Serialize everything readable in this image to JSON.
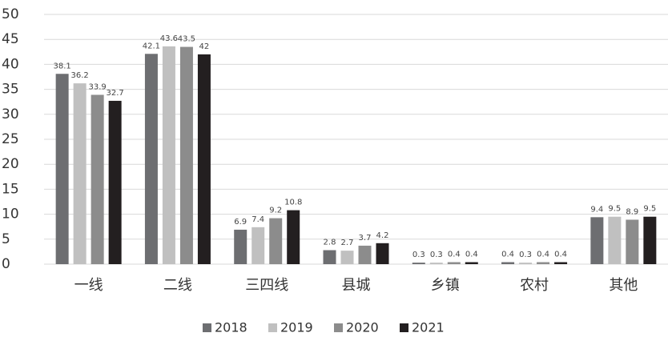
{
  "chart_data": {
    "type": "bar",
    "categories": [
      "一线",
      "二线",
      "三四线",
      "县城",
      "乡镇",
      "农村",
      "其他"
    ],
    "series": [
      {
        "name": "2018",
        "color": "#6d6e71",
        "values": [
          38.1,
          42.1,
          6.9,
          2.8,
          0.3,
          0.4,
          9.4
        ]
      },
      {
        "name": "2019",
        "color": "#c0c0c0",
        "values": [
          36.2,
          43.6,
          7.4,
          2.7,
          0.3,
          0.3,
          9.5
        ]
      },
      {
        "name": "2020",
        "color": "#8c8c8c",
        "values": [
          33.9,
          43.5,
          9.2,
          3.7,
          0.4,
          0.4,
          8.9
        ]
      },
      {
        "name": "2021",
        "color": "#231f20",
        "values": [
          32.7,
          42,
          10.8,
          4.2,
          0.4,
          0.4,
          9.5
        ]
      }
    ],
    "ylim": [
      0,
      50
    ],
    "yticks": [
      0,
      5,
      10,
      15,
      20,
      25,
      30,
      35,
      40,
      45,
      50
    ],
    "grid": true,
    "legend": "bottom"
  }
}
